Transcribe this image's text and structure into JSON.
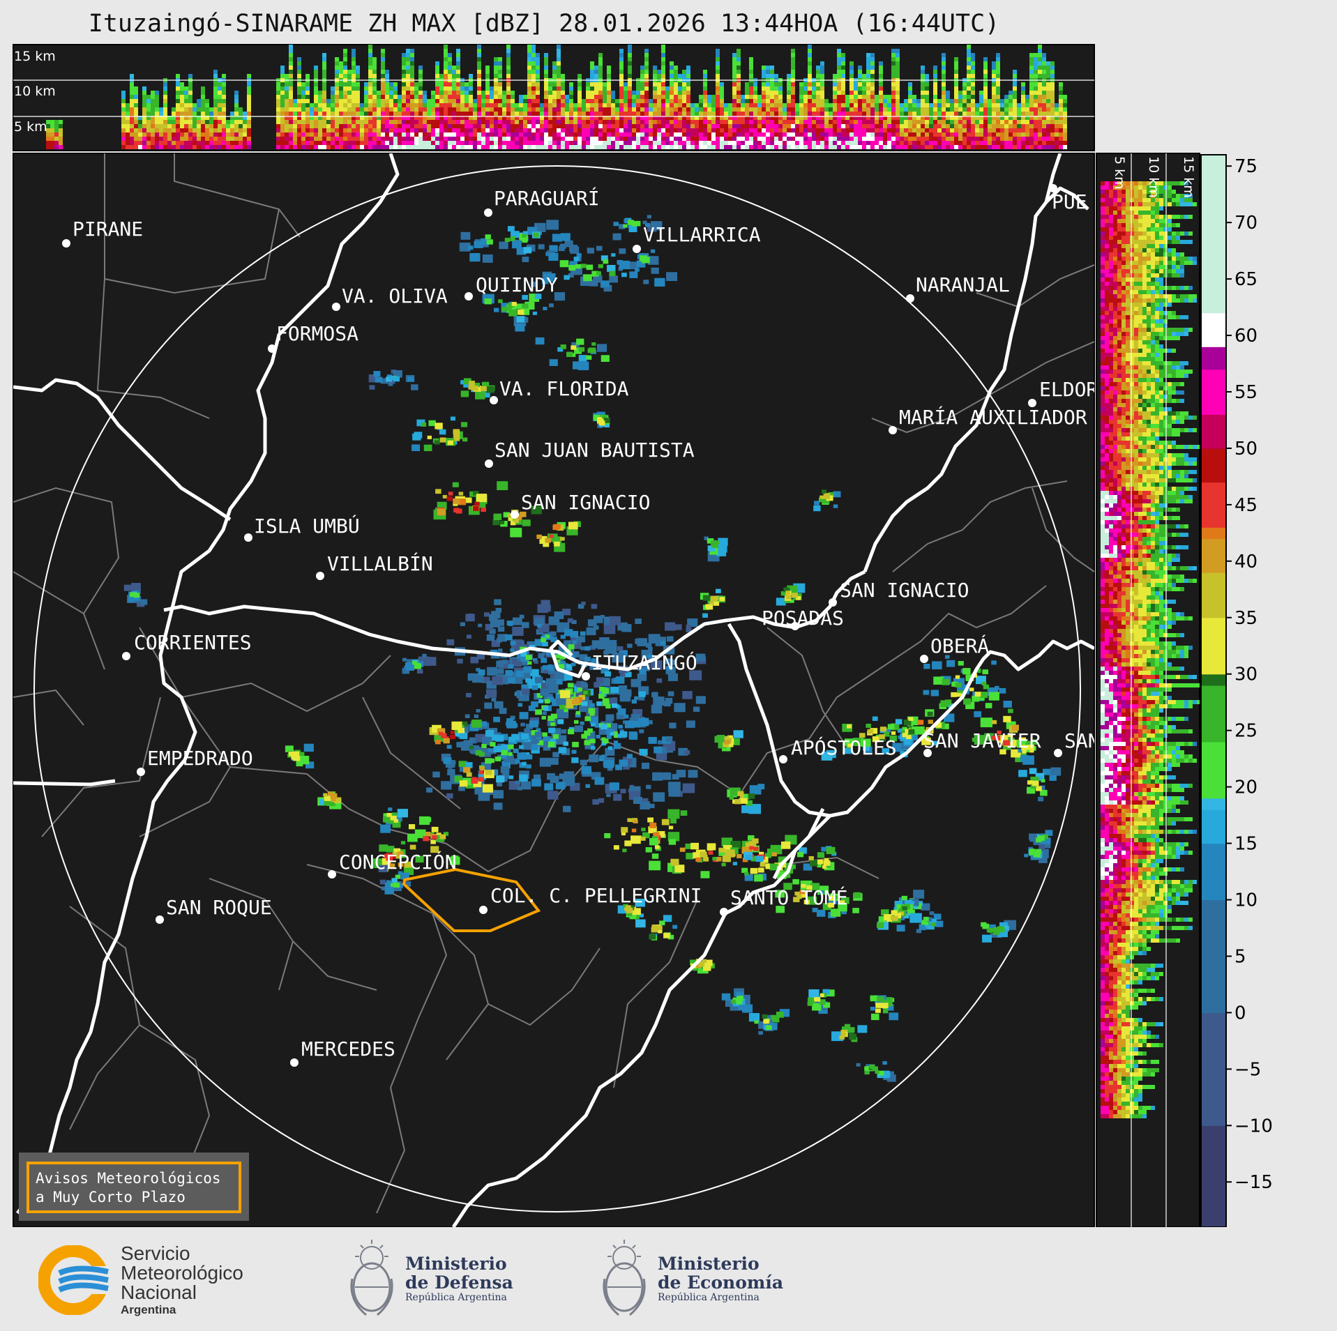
{
  "title": "Ituzaingó-SINARAME ZH MAX [dBZ] 28.01.2026 13:44HOA (16:44UTC)",
  "top_panel_labels": [
    "15 km",
    "10 km",
    "5 km"
  ],
  "side_panel_labels": [
    "5 km",
    "10 km",
    "15 km"
  ],
  "colorbar": {
    "unit": "dBZ",
    "ticks": [
      "75",
      "70",
      "65",
      "60",
      "55",
      "50",
      "45",
      "40",
      "35",
      "30",
      "25",
      "20",
      "15",
      "10",
      "5",
      "0",
      "−5",
      "−10",
      "−15"
    ],
    "range": [
      -19,
      76
    ]
  },
  "places": [
    {
      "name": "PIRANE"
    },
    {
      "name": "PARAGUARÍ"
    },
    {
      "name": "VILLARRICA"
    },
    {
      "name": "VA. OLIVA"
    },
    {
      "name": "QUIINDY"
    },
    {
      "name": "FORMOSA"
    },
    {
      "name": "NARANJAL"
    },
    {
      "name": "VA. FLORIDA"
    },
    {
      "name": "ELDOR"
    },
    {
      "name": "MARÍA AUXILIADOR"
    },
    {
      "name": "SAN JUAN BAUTISTA"
    },
    {
      "name": "SAN IGNACIO"
    },
    {
      "name": "ISLA UMBÚ"
    },
    {
      "name": "VILLALBÍN"
    },
    {
      "name": "SAN IGNACIO"
    },
    {
      "name": "POSADAS"
    },
    {
      "name": "CORRIENTES"
    },
    {
      "name": "ITUZAINGÓ"
    },
    {
      "name": "OBERÁ"
    },
    {
      "name": "APÓSTOLES"
    },
    {
      "name": "SAN JAVIER"
    },
    {
      "name": "SAN"
    },
    {
      "name": "EMPEDRADO"
    },
    {
      "name": "CONCEPCIÓN"
    },
    {
      "name": "COL. C. PELLEGRINI"
    },
    {
      "name": "SANTO TOMÉ"
    },
    {
      "name": "SAN ROQUE"
    },
    {
      "name": "MERCEDES"
    },
    {
      "name": "PUE"
    }
  ],
  "warning_box": {
    "line1": "Avisos Meteorológicos",
    "line2": "a Muy Corto Plazo",
    "color": "#f5a200"
  },
  "logos": {
    "smn": {
      "line1": "Servicio",
      "line2": "Meteorológico",
      "line3": "Nacional",
      "line4": "Argentina"
    },
    "defensa": {
      "line1": "Ministerio",
      "line2": "de Defensa",
      "line3": "República Argentina"
    },
    "economia": {
      "line1": "Ministerio",
      "line2": "de Economía",
      "line3": "República Argentina"
    }
  },
  "colors": {
    "map_bg": "#1b1b1b",
    "rivers": "#ffffff",
    "borders": "#7a7a7a",
    "smn_orange": "#f5a200",
    "smn_blue": "#2a8fd6"
  }
}
